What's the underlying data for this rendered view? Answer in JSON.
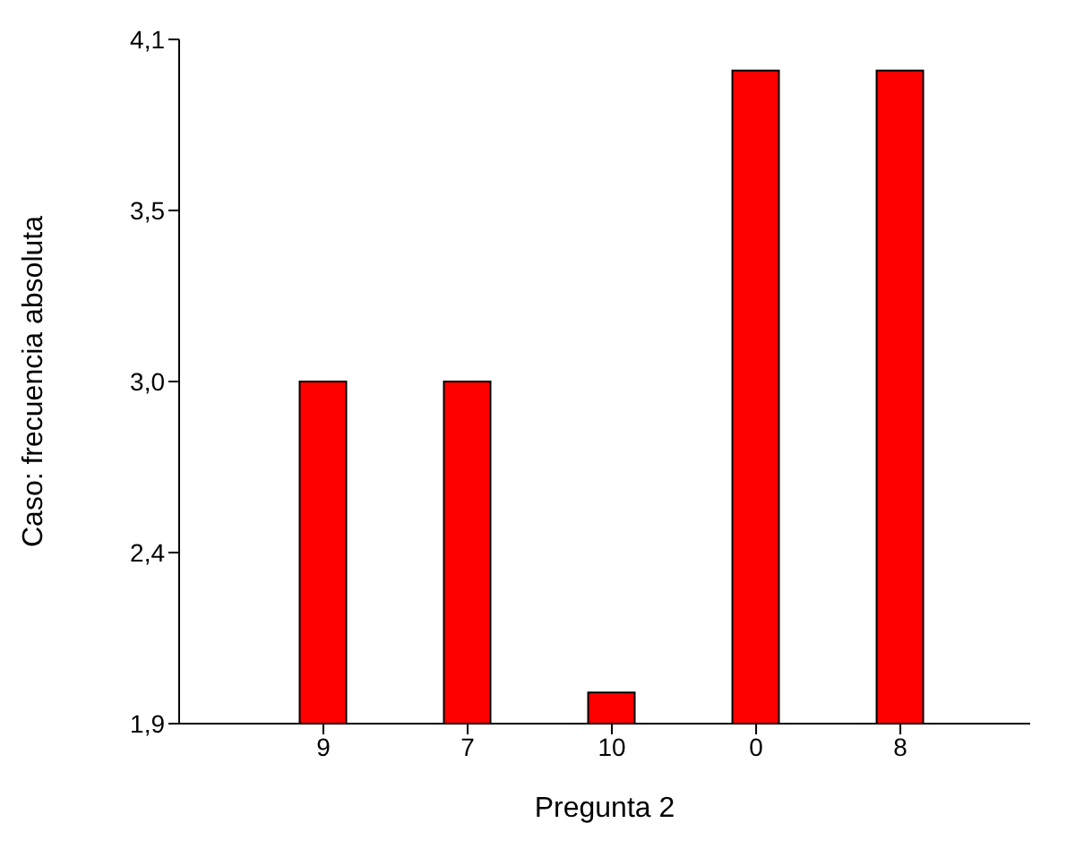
{
  "chart_data": {
    "type": "bar",
    "xlabel": "Pregunta 2",
    "ylabel": "Caso: frecuencia absoluta",
    "categories": [
      "9",
      "7",
      "10",
      "0",
      "8"
    ],
    "values": [
      3,
      3,
      2,
      4,
      4
    ],
    "color": "#ff0000",
    "ylim": [
      1.9,
      4.1
    ],
    "yticks": [
      {
        "value": 1.9,
        "label": "1,9"
      },
      {
        "value": 2.45,
        "label": "2,4"
      },
      {
        "value": 3.0,
        "label": "3,0"
      },
      {
        "value": 3.55,
        "label": "3,5"
      },
      {
        "value": 4.1,
        "label": "4,1"
      }
    ],
    "grid": false,
    "legend": false
  }
}
